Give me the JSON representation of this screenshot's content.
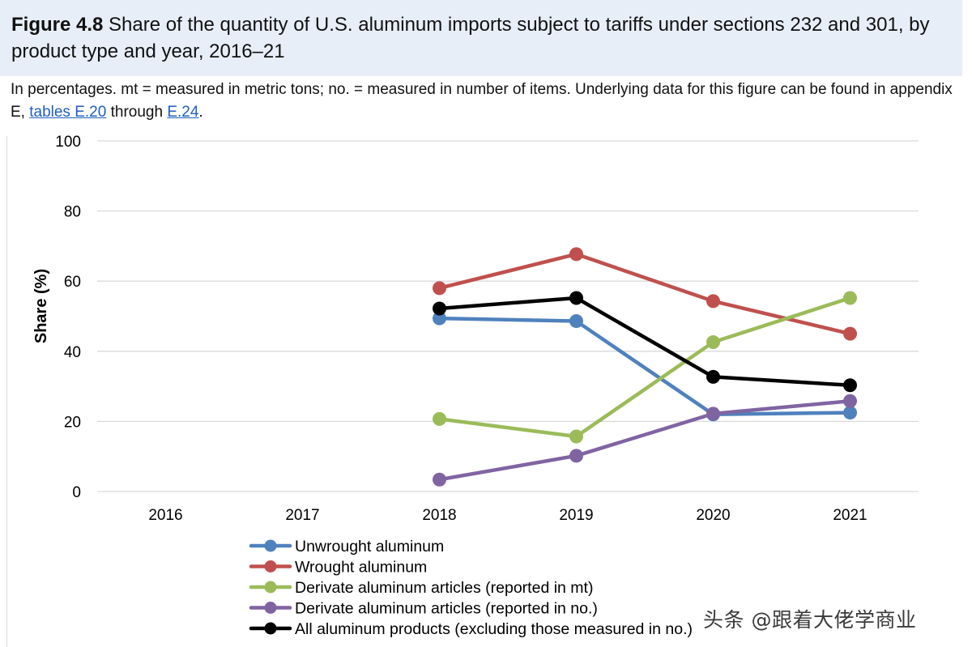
{
  "figure": {
    "label": "Figure 4.8",
    "title": "Share of the quantity of U.S. aluminum imports subject to tariffs under sections 232 and 301, by product type and year, 2016–21"
  },
  "note": {
    "text_before": "In percentages. mt = measured in metric tons; no. = measured in number of items. Underlying data for this figure can be found in appendix E,",
    "link1": "tables E.20",
    "middle": "through",
    "link2": "E.24",
    "end": "."
  },
  "chart_data": {
    "type": "line",
    "title": "",
    "xlabel": "",
    "ylabel": "Share (%)",
    "ylim": [
      0,
      100
    ],
    "yticks": [
      0,
      20,
      40,
      60,
      80,
      100
    ],
    "categories": [
      "2016",
      "2017",
      "2018",
      "2019",
      "2020",
      "2021"
    ],
    "grid": true,
    "legend_position": "bottom",
    "series": [
      {
        "name": "Unwrought aluminum",
        "color": "#4f81bd",
        "values": [
          null,
          null,
          49.4,
          48.6,
          22.0,
          22.5
        ]
      },
      {
        "name": "Wrought aluminum",
        "color": "#c0504d",
        "values": [
          null,
          null,
          58.0,
          67.7,
          54.3,
          45.0
        ]
      },
      {
        "name": "Derivate aluminum articles (reported in mt)",
        "color": "#9bbb59",
        "values": [
          null,
          null,
          20.7,
          15.7,
          42.6,
          55.2
        ]
      },
      {
        "name": "Derivate aluminum articles (reported in no.)",
        "color": "#8064a2",
        "values": [
          null,
          null,
          3.4,
          10.2,
          22.2,
          25.8
        ]
      },
      {
        "name": "All aluminum products (excluding those measured in no.)",
        "color": "#000000",
        "values": [
          null,
          null,
          52.2,
          55.2,
          32.7,
          30.3
        ]
      }
    ]
  },
  "watermark": "头条 @跟着大佬学商业"
}
